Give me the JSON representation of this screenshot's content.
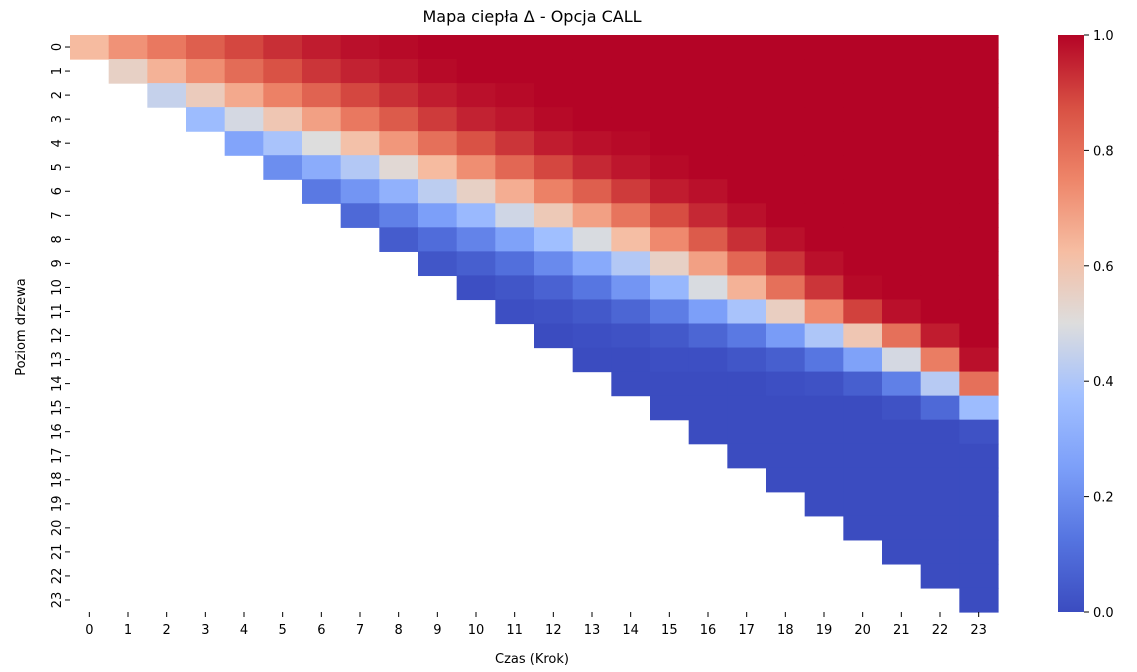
{
  "chart_data": {
    "type": "heatmap",
    "title": "Mapa ciepła Δ - Opcja CALL",
    "xlabel": "Czas (Krok)",
    "ylabel": "Poziom drzewa",
    "x_ticks": [
      "0",
      "1",
      "2",
      "3",
      "4",
      "5",
      "6",
      "7",
      "8",
      "9",
      "10",
      "11",
      "12",
      "13",
      "14",
      "15",
      "16",
      "17",
      "18",
      "19",
      "20",
      "21",
      "22",
      "23"
    ],
    "y_ticks": [
      "0",
      "1",
      "2",
      "3",
      "4",
      "5",
      "6",
      "7",
      "8",
      "9",
      "10",
      "11",
      "12",
      "13",
      "14",
      "15",
      "16",
      "17",
      "18",
      "19",
      "20",
      "21",
      "22",
      "23"
    ],
    "y_tick_labels_visible": [
      "0",
      "1",
      "2",
      "3",
      "4",
      "5",
      "6",
      "7",
      "8",
      "9",
      "10",
      "11",
      "12",
      "13",
      "14",
      "15",
      "16",
      "17",
      "18",
      "19",
      "20",
      "21",
      "22",
      "23"
    ],
    "colorbar": {
      "colormap": "coolwarm",
      "vmin": 0.0,
      "vmax": 1.0,
      "ticks": [
        "0.0",
        "0.2",
        "0.4",
        "0.6",
        "0.8",
        "1.0"
      ]
    },
    "mask": "cells where row > column are empty (white)",
    "values": [
      [
        0.63,
        0.72,
        0.78,
        0.84,
        0.89,
        0.93,
        0.96,
        0.98,
        0.99,
        1,
        1,
        1,
        1,
        1,
        1,
        1,
        1,
        1,
        1,
        1,
        1,
        1,
        1,
        1
      ],
      [
        null,
        0.55,
        0.65,
        0.73,
        0.81,
        0.87,
        0.92,
        0.95,
        0.97,
        0.99,
        1,
        1,
        1,
        1,
        1,
        1,
        1,
        1,
        1,
        1,
        1,
        1,
        1,
        1
      ],
      [
        null,
        null,
        0.45,
        0.57,
        0.67,
        0.76,
        0.83,
        0.89,
        0.93,
        0.96,
        0.98,
        0.99,
        1,
        1,
        1,
        1,
        1,
        1,
        1,
        1,
        1,
        1,
        1,
        1
      ],
      [
        null,
        null,
        null,
        0.36,
        0.48,
        0.59,
        0.69,
        0.78,
        0.85,
        0.91,
        0.95,
        0.97,
        0.99,
        1,
        1,
        1,
        1,
        1,
        1,
        1,
        1,
        1,
        1,
        1
      ],
      [
        null,
        null,
        null,
        null,
        0.27,
        0.39,
        0.5,
        0.61,
        0.71,
        0.8,
        0.87,
        0.92,
        0.96,
        0.98,
        0.99,
        1,
        1,
        1,
        1,
        1,
        1,
        1,
        1,
        1
      ],
      [
        null,
        null,
        null,
        null,
        null,
        0.2,
        0.3,
        0.41,
        0.52,
        0.63,
        0.73,
        0.82,
        0.89,
        0.94,
        0.97,
        0.99,
        1,
        1,
        1,
        1,
        1,
        1,
        1,
        1
      ],
      [
        null,
        null,
        null,
        null,
        null,
        null,
        0.14,
        0.22,
        0.32,
        0.43,
        0.55,
        0.66,
        0.76,
        0.84,
        0.91,
        0.96,
        0.98,
        1,
        1,
        1,
        1,
        1,
        1,
        1
      ],
      [
        null,
        null,
        null,
        null,
        null,
        null,
        null,
        0.09,
        0.16,
        0.25,
        0.35,
        0.47,
        0.58,
        0.69,
        0.79,
        0.88,
        0.94,
        0.98,
        1,
        1,
        1,
        1,
        1,
        1
      ],
      [
        null,
        null,
        null,
        null,
        null,
        null,
        null,
        null,
        0.05,
        0.1,
        0.17,
        0.26,
        0.37,
        0.49,
        0.62,
        0.74,
        0.85,
        0.93,
        0.98,
        1,
        1,
        1,
        1,
        1
      ],
      [
        null,
        null,
        null,
        null,
        null,
        null,
        null,
        null,
        null,
        0.03,
        0.06,
        0.11,
        0.19,
        0.29,
        0.41,
        0.55,
        0.69,
        0.82,
        0.92,
        0.98,
        1,
        1,
        1,
        1
      ],
      [
        null,
        null,
        null,
        null,
        null,
        null,
        null,
        null,
        null,
        null,
        0.01,
        0.03,
        0.07,
        0.13,
        0.22,
        0.34,
        0.49,
        0.65,
        0.8,
        0.92,
        0.99,
        1,
        1,
        1
      ],
      [
        null,
        null,
        null,
        null,
        null,
        null,
        null,
        null,
        null,
        null,
        null,
        0.01,
        0.02,
        0.04,
        0.08,
        0.15,
        0.25,
        0.39,
        0.56,
        0.74,
        0.9,
        0.98,
        1,
        1
      ],
      [
        null,
        null,
        null,
        null,
        null,
        null,
        null,
        null,
        null,
        null,
        null,
        null,
        0,
        0.01,
        0.02,
        0.04,
        0.08,
        0.14,
        0.24,
        0.4,
        0.59,
        0.8,
        0.96,
        1
      ],
      [
        null,
        null,
        null,
        null,
        null,
        null,
        null,
        null,
        null,
        null,
        null,
        null,
        null,
        0,
        0,
        0.01,
        0.01,
        0.03,
        0.06,
        0.13,
        0.26,
        0.48,
        0.77,
        0.98
      ],
      [
        null,
        null,
        null,
        null,
        null,
        null,
        null,
        null,
        null,
        null,
        null,
        null,
        null,
        null,
        0,
        0,
        0,
        0,
        0.01,
        0.02,
        0.06,
        0.16,
        0.42,
        0.8
      ],
      [
        null,
        null,
        null,
        null,
        null,
        null,
        null,
        null,
        null,
        null,
        null,
        null,
        null,
        null,
        null,
        0,
        0,
        0,
        0,
        0,
        0,
        0.02,
        0.09,
        0.36
      ],
      [
        null,
        null,
        null,
        null,
        null,
        null,
        null,
        null,
        null,
        null,
        null,
        null,
        null,
        null,
        null,
        null,
        0,
        0,
        0,
        0,
        0,
        0,
        0,
        0.02
      ],
      [
        null,
        null,
        null,
        null,
        null,
        null,
        null,
        null,
        null,
        null,
        null,
        null,
        null,
        null,
        null,
        null,
        null,
        0,
        0,
        0,
        0,
        0,
        0,
        0
      ],
      [
        null,
        null,
        null,
        null,
        null,
        null,
        null,
        null,
        null,
        null,
        null,
        null,
        null,
        null,
        null,
        null,
        null,
        null,
        0,
        0,
        0,
        0,
        0,
        0
      ],
      [
        null,
        null,
        null,
        null,
        null,
        null,
        null,
        null,
        null,
        null,
        null,
        null,
        null,
        null,
        null,
        null,
        null,
        null,
        null,
        0,
        0,
        0,
        0,
        0
      ],
      [
        null,
        null,
        null,
        null,
        null,
        null,
        null,
        null,
        null,
        null,
        null,
        null,
        null,
        null,
        null,
        null,
        null,
        null,
        null,
        null,
        0,
        0,
        0,
        0
      ],
      [
        null,
        null,
        null,
        null,
        null,
        null,
        null,
        null,
        null,
        null,
        null,
        null,
        null,
        null,
        null,
        null,
        null,
        null,
        null,
        null,
        null,
        0,
        0,
        0
      ],
      [
        null,
        null,
        null,
        null,
        null,
        null,
        null,
        null,
        null,
        null,
        null,
        null,
        null,
        null,
        null,
        null,
        null,
        null,
        null,
        null,
        null,
        null,
        0,
        0
      ],
      [
        null,
        null,
        null,
        null,
        null,
        null,
        null,
        null,
        null,
        null,
        null,
        null,
        null,
        null,
        null,
        null,
        null,
        null,
        null,
        null,
        null,
        null,
        null,
        0
      ]
    ]
  }
}
